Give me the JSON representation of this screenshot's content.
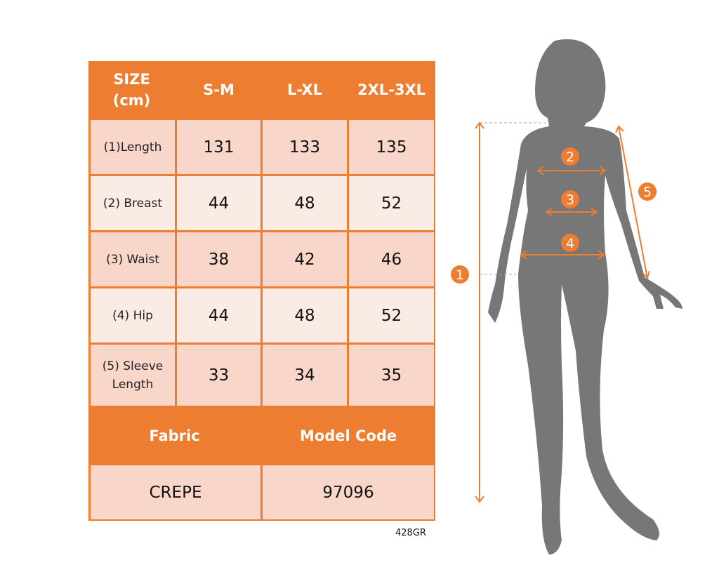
{
  "table": {
    "header": [
      "SIZE\n(cm)",
      "S-M",
      "L-XL",
      "2XL-3XL"
    ],
    "rows": [
      {
        "label": "(1)Length",
        "values": [
          "131",
          "133",
          "135"
        ]
      },
      {
        "label": "(2) Breast",
        "values": [
          "44",
          "48",
          "52"
        ]
      },
      {
        "label": "(3) Waist",
        "values": [
          "38",
          "42",
          "46"
        ]
      },
      {
        "label": "(4) Hip",
        "values": [
          "44",
          "48",
          "52"
        ]
      },
      {
        "label": "(5) Sleeve\nLength",
        "values": [
          "33",
          "34",
          "35"
        ]
      }
    ],
    "info_header": [
      "Fabric",
      "Model Code"
    ],
    "info_values": [
      "CREPE",
      "97096"
    ]
  },
  "product_code": "428GR",
  "figure": {
    "markers": [
      "1",
      "2",
      "3",
      "4",
      "5"
    ],
    "silhouette_color": "#777777",
    "accent_color": "#ED7D31"
  }
}
